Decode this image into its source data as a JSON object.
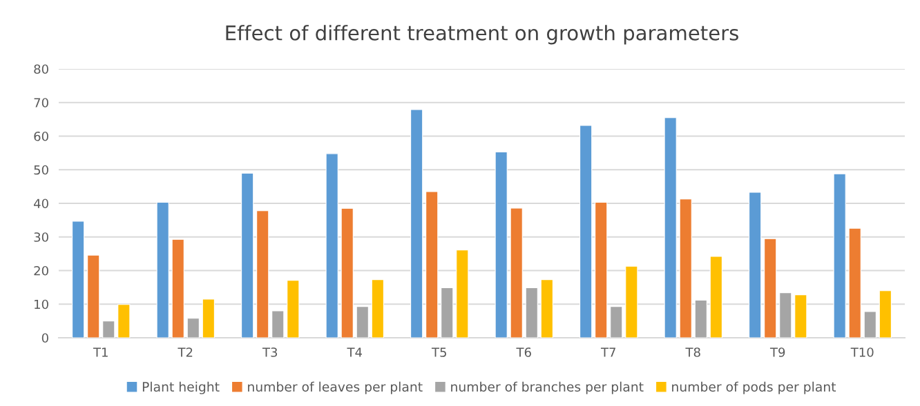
{
  "chart_data": {
    "type": "bar",
    "title": "Effect of different treatment on growth parameters",
    "categories": [
      "T1",
      "T2",
      "T3",
      "T4",
      "T5",
      "T6",
      "T7",
      "T8",
      "T9",
      "T10"
    ],
    "series": [
      {
        "name": "Plant height",
        "color": "#5b9bd5",
        "values": [
          34.7,
          40.3,
          49.0,
          54.8,
          67.9,
          55.3,
          63.2,
          65.5,
          43.3,
          48.8
        ]
      },
      {
        "name": "number of leaves per plant",
        "color": "#ed7d31",
        "values": [
          24.6,
          29.3,
          37.8,
          38.5,
          43.5,
          38.6,
          40.3,
          41.3,
          29.5,
          32.6
        ]
      },
      {
        "name": "number of branches per plant",
        "color": "#a5a5a5",
        "values": [
          5.0,
          5.8,
          8.0,
          9.3,
          14.9,
          14.9,
          9.3,
          11.2,
          13.4,
          7.8
        ]
      },
      {
        "name": "number of pods per plant",
        "color": "#ffc000",
        "values": [
          9.9,
          11.5,
          17.1,
          17.3,
          26.1,
          17.3,
          21.3,
          24.2,
          12.8,
          14.0
        ]
      }
    ],
    "ylim": [
      0,
      80
    ],
    "yticks": [
      0,
      10,
      20,
      30,
      40,
      50,
      60,
      70,
      80
    ],
    "grid": "y",
    "legend": "bottom"
  }
}
